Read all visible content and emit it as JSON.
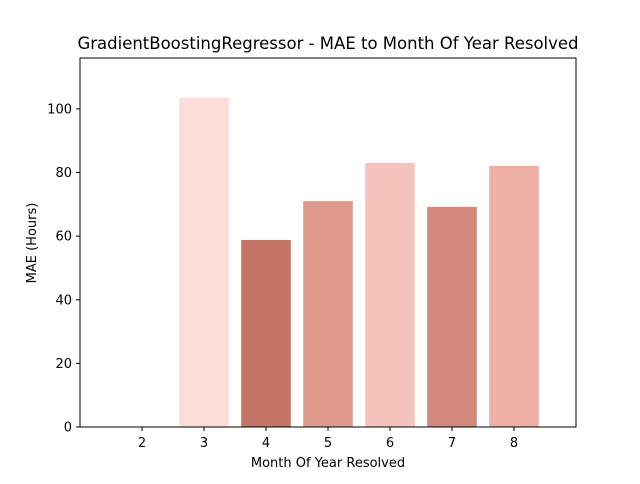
{
  "chart_data": {
    "type": "bar",
    "title": "GradientBoostingRegressor - MAE to Month Of Year Resolved",
    "xlabel": "Month Of Year Resolved",
    "ylabel": "MAE (Hours)",
    "categories": [
      "2",
      "3",
      "4",
      "5",
      "6",
      "7",
      "8"
    ],
    "values": [
      0,
      103.5,
      58.8,
      71.0,
      83.0,
      69.2,
      82.1
    ],
    "bar_colors": [
      "#f9d9d5",
      "#fbdeda",
      "#c47568",
      "#e0998d",
      "#f5c3bc",
      "#d2887b",
      "#eeafa5"
    ],
    "ylim": [
      0,
      116
    ],
    "yticks": [
      0,
      20,
      40,
      60,
      80,
      100
    ],
    "grid": false,
    "legend": "none"
  }
}
